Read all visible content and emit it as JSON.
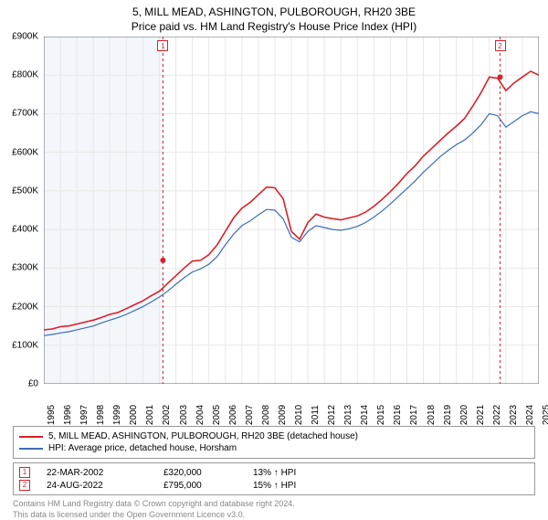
{
  "title": "5, MILL MEAD, ASHINGTON, PULBOROUGH, RH20 3BE",
  "subtitle": "Price paid vs. HM Land Registry's House Price Index (HPI)",
  "chart": {
    "type": "line",
    "background_color": "#ffffff",
    "grid_color": "#e8e8e8",
    "pre_tx_band_color": "#f3f6fa",
    "ylabel_prefix": "£",
    "ylim": [
      0,
      900
    ],
    "ytick_step": 100,
    "yticks": [
      "£0",
      "£100K",
      "£200K",
      "£300K",
      "£400K",
      "£500K",
      "£600K",
      "£700K",
      "£800K",
      "£900K"
    ],
    "x_years": [
      1995,
      1996,
      1997,
      1998,
      1999,
      2000,
      2001,
      2002,
      2003,
      2004,
      2005,
      2006,
      2007,
      2008,
      2009,
      2010,
      2011,
      2012,
      2013,
      2014,
      2015,
      2016,
      2017,
      2018,
      2019,
      2020,
      2021,
      2022,
      2023,
      2024,
      2025
    ],
    "series": [
      {
        "name": "property",
        "label": "5, MILL MEAD, ASHINGTON, PULBOROUGH, RH20 3BE (detached house)",
        "color": "#d9202a",
        "line_width": 1.6,
        "values": [
          140,
          142,
          148,
          150,
          155,
          160,
          165,
          172,
          180,
          185,
          195,
          205,
          215,
          228,
          240,
          260,
          280,
          300,
          318,
          320,
          335,
          360,
          395,
          430,
          455,
          470,
          490,
          510,
          508,
          480,
          395,
          375,
          418,
          440,
          432,
          428,
          425,
          430,
          435,
          445,
          460,
          478,
          498,
          520,
          545,
          565,
          590,
          610,
          630,
          650,
          668,
          688,
          720,
          755,
          795,
          792,
          760,
          780,
          795,
          810,
          800
        ]
      },
      {
        "name": "hpi",
        "label": "HPI: Average price, detached house, Horsham",
        "color": "#3b6db8",
        "line_width": 1.2,
        "values": [
          125,
          128,
          132,
          135,
          140,
          145,
          150,
          158,
          165,
          172,
          180,
          190,
          200,
          212,
          225,
          240,
          258,
          275,
          290,
          298,
          310,
          330,
          360,
          388,
          410,
          422,
          438,
          452,
          450,
          428,
          380,
          368,
          395,
          410,
          405,
          400,
          398,
          402,
          408,
          418,
          432,
          448,
          466,
          486,
          506,
          526,
          548,
          568,
          588,
          605,
          620,
          632,
          650,
          672,
          700,
          695,
          665,
          680,
          695,
          705,
          700
        ]
      }
    ],
    "transactions": [
      {
        "n": "1",
        "year": 2002.22,
        "price_k": 320,
        "marker_color": "#d9202a"
      },
      {
        "n": "2",
        "year": 2022.65,
        "price_k": 795,
        "marker_color": "#d9202a"
      }
    ],
    "title_fontsize": 12,
    "label_fontsize": 10
  },
  "legend": {
    "items": [
      {
        "name": "property",
        "color": "#d9202a",
        "label": "5, MILL MEAD, ASHINGTON, PULBOROUGH, RH20 3BE (detached house)"
      },
      {
        "name": "hpi",
        "color": "#3b6db8",
        "label": "HPI: Average price, detached house, Horsham"
      }
    ]
  },
  "transactions_table": {
    "rows": [
      {
        "n": "1",
        "date": "22-MAR-2002",
        "price": "£320,000",
        "pct": "13% ↑ HPI",
        "marker_color": "#d9202a"
      },
      {
        "n": "2",
        "date": "24-AUG-2022",
        "price": "£795,000",
        "pct": "15% ↑ HPI",
        "marker_color": "#d9202a"
      }
    ]
  },
  "footer": {
    "line1": "Contains HM Land Registry data © Crown copyright and database right 2024.",
    "line2": "This data is licensed under the Open Government Licence v3.0."
  }
}
